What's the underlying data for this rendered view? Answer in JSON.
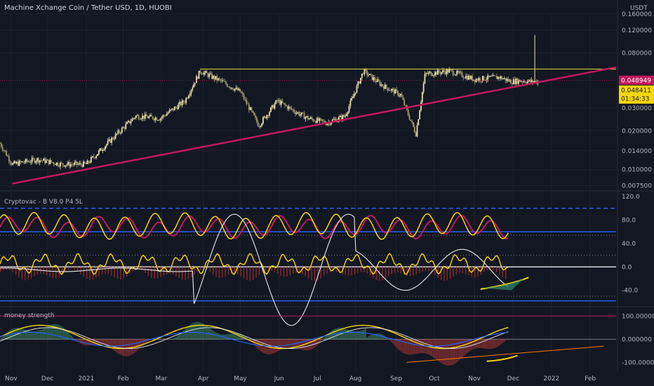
{
  "chart_data": {
    "type": "candlestick",
    "title": "Machine Xchange Coin / Tether USD, 1D, HUOBI",
    "currency_label": "USDT",
    "price_axis": [
      {
        "label": "0.160000",
        "value": 0.16
      },
      {
        "label": "0.120000",
        "value": 0.12
      },
      {
        "label": "0.080000",
        "value": 0.08
      },
      {
        "label": "0.030000",
        "value": 0.03
      },
      {
        "label": "0.020000",
        "value": 0.02
      },
      {
        "label": "0.014000",
        "value": 0.014
      },
      {
        "label": "0.010000",
        "value": 0.01
      },
      {
        "label": "0.007500",
        "value": 0.0075
      }
    ],
    "last_price_label": "0.048949",
    "current_price_label": "0.048411",
    "countdown_label": "01:34:33",
    "time_axis": [
      "Nov",
      "Dec",
      "2021",
      "Feb",
      "Mar",
      "Apr",
      "May",
      "Jun",
      "Jul",
      "Aug",
      "Sep",
      "Oct",
      "Nov",
      "Dec",
      "2022",
      "Feb"
    ],
    "price_path": [
      [
        0,
        0.016
      ],
      [
        0.02,
        0.011
      ],
      [
        0.06,
        0.012
      ],
      [
        0.1,
        0.011
      ],
      [
        0.14,
        0.011
      ],
      [
        0.18,
        0.017
      ],
      [
        0.22,
        0.026
      ],
      [
        0.26,
        0.025
      ],
      [
        0.3,
        0.034
      ],
      [
        0.325,
        0.058
      ],
      [
        0.36,
        0.048
      ],
      [
        0.39,
        0.04
      ],
      [
        0.42,
        0.022
      ],
      [
        0.45,
        0.034
      ],
      [
        0.48,
        0.028
      ],
      [
        0.5,
        0.025
      ],
      [
        0.53,
        0.023
      ],
      [
        0.56,
        0.026
      ],
      [
        0.59,
        0.058
      ],
      [
        0.62,
        0.045
      ],
      [
        0.65,
        0.038
      ],
      [
        0.665,
        0.025
      ],
      [
        0.675,
        0.019
      ],
      [
        0.69,
        0.055
      ],
      [
        0.73,
        0.058
      ],
      [
        0.77,
        0.05
      ],
      [
        0.81,
        0.052
      ],
      [
        0.83,
        0.048
      ],
      [
        0.845,
        0.049
      ],
      [
        0.86,
        0.048
      ]
    ],
    "resistance_line": {
      "from": [
        0.325,
        0.06
      ],
      "to": [
        1.0,
        0.06
      ]
    },
    "support_line": {
      "from": [
        0.02,
        0.0078
      ],
      "to": [
        1.0,
        0.062
      ]
    },
    "indicator1": {
      "name": "Cryptovac - B V8.0 P4 5L",
      "axis": [
        {
          "label": "120.0",
          "value": 120
        },
        {
          "label": "80.0",
          "value": 80
        },
        {
          "label": "40.0",
          "value": 40
        },
        {
          "label": "0.0",
          "value": 0
        },
        {
          "label": "-40.0",
          "value": -40
        }
      ]
    },
    "indicator2": {
      "name": "money strength",
      "axis": [
        {
          "label": "100.000000",
          "value": 100
        },
        {
          "label": "0.000000",
          "value": 0
        },
        {
          "label": "-100.000000",
          "value": -100
        }
      ]
    }
  }
}
